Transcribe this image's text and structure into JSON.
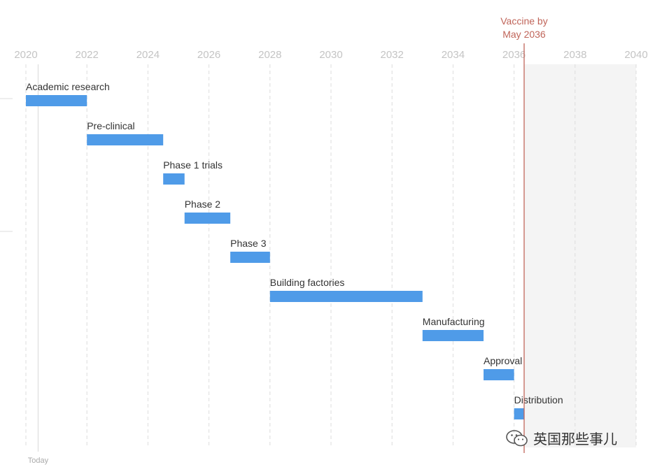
{
  "chart_data": {
    "type": "gantt",
    "x_range": [
      2020,
      2040
    ],
    "ticks": [
      2020,
      2022,
      2024,
      2026,
      2028,
      2030,
      2032,
      2034,
      2036,
      2038,
      2040
    ],
    "tasks": [
      {
        "label": "Academic research",
        "start": 2020.0,
        "end": 2022.0
      },
      {
        "label": "Pre-clinical",
        "start": 2022.0,
        "end": 2024.5
      },
      {
        "label": "Phase 1 trials",
        "start": 2024.5,
        "end": 2025.2
      },
      {
        "label": "Phase 2",
        "start": 2025.2,
        "end": 2026.7
      },
      {
        "label": "Phase 3",
        "start": 2026.7,
        "end": 2028.0
      },
      {
        "label": "Building factories",
        "start": 2028.0,
        "end": 2033.0
      },
      {
        "label": "Manufacturing",
        "start": 2033.0,
        "end": 2035.0
      },
      {
        "label": "Approval",
        "start": 2035.0,
        "end": 2036.0
      },
      {
        "label": "Distribution",
        "start": 2036.0,
        "end": 2036.33
      }
    ],
    "today_value": 2020.4,
    "today_label": "Today",
    "annotation": {
      "line1": "Vaccine by",
      "line2": "May 2036",
      "value": 2036.33
    },
    "bar_color": "#4f9be8",
    "annotation_color": "#c0655a",
    "grid": true
  },
  "watermark": {
    "text": "英国那些事儿",
    "icon": "wechat-icon"
  }
}
